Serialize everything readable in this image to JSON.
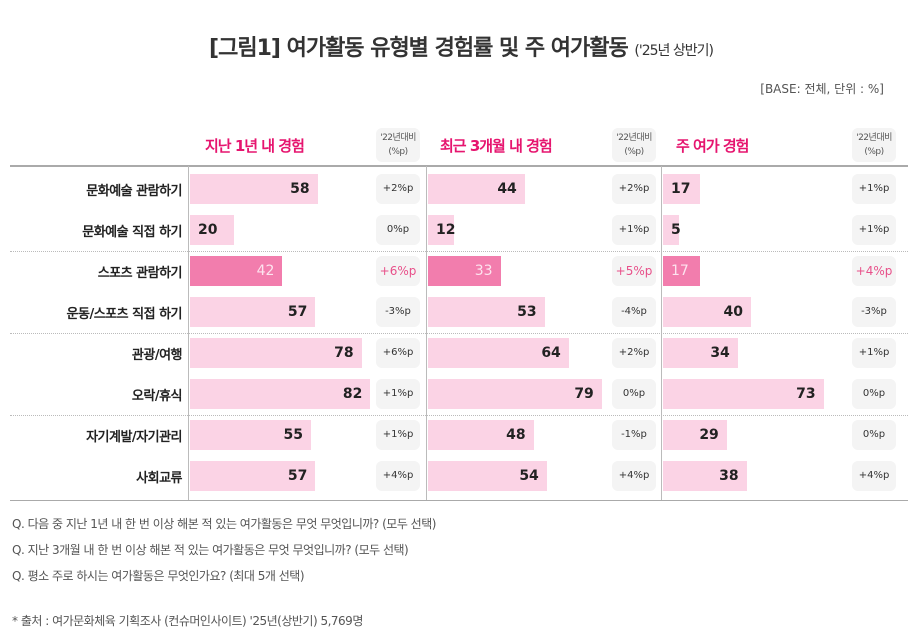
{
  "title": "[그림1] 여가활동 유형별 경험률 및 주 여가활동",
  "title_suffix": "('25년 상반기)",
  "base_note": "[BASE: 전체, 단위 : %]",
  "change_header": [
    "'22년대비",
    "(%p)"
  ],
  "chart_data": {
    "type": "bar",
    "orientation": "horizontal",
    "categories": [
      "문화예술 관람하기",
      "문화예술 직접 하기",
      "스포츠 관람하기",
      "운동/스포츠 직접 하기",
      "관광/여행",
      "오락/휴식",
      "자기계발/자기관리",
      "사회교류"
    ],
    "highlight_category": "스포츠 관람하기",
    "series": [
      {
        "name": "지난 1년 내 경험",
        "values": [
          58,
          20,
          42,
          57,
          78,
          82,
          55,
          57
        ],
        "change": [
          "+2%p",
          "0%p",
          "+6%p",
          "-3%p",
          "+6%p",
          "+1%p",
          "+1%p",
          "+4%p"
        ]
      },
      {
        "name": "최근 3개월 내 경험",
        "values": [
          44,
          12,
          33,
          53,
          64,
          79,
          48,
          54
        ],
        "change": [
          "+2%p",
          "+1%p",
          "+5%p",
          "-4%p",
          "+2%p",
          "0%p",
          "-1%p",
          "+4%p"
        ]
      },
      {
        "name": "주 여가 경험",
        "values": [
          17,
          5,
          17,
          40,
          34,
          73,
          29,
          38
        ],
        "change": [
          "+1%p",
          "+1%p",
          "+4%p",
          "-3%p",
          "+1%p",
          "0%p",
          "0%p",
          "+4%p"
        ]
      }
    ],
    "xlim": [
      0,
      100
    ],
    "colors": {
      "bar": "#fbd3e5",
      "highlight": "#f27dad",
      "accent": "#e6156f"
    }
  },
  "notes": [
    "Q. 다음 중 지난 1년 내 한 번 이상 해본 적 있는 여가활동은 무엇 무엇입니까? (모두 선택)",
    "Q. 지난 3개월 내 한 번 이상 해본 적 있는 여가활동은 무엇 무엇입니까? (모두 선택)",
    "Q. 평소 주로 하시는 여가활동은 무엇인가요? (최대 5개 선택)"
  ],
  "source": "* 출처 : 여가문화체육 기획조사 (컨슈머인사이트) '25년(상반기) 5,769명"
}
